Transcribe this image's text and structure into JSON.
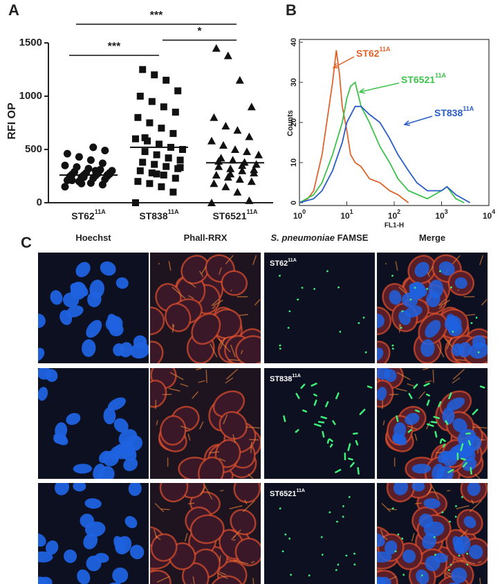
{
  "figure": {
    "panel_letters": [
      "A",
      "B",
      "C"
    ]
  },
  "chart_data": [
    {
      "type": "scatter",
      "y_label": "RFI OP",
      "categories": [
        "ST62",
        "ST838",
        "ST6521"
      ],
      "category_superscripts": [
        "11A",
        "11A",
        "11A"
      ],
      "ylim": [
        0,
        1500
      ],
      "yticks": [
        0,
        500,
        1000,
        1500
      ],
      "color": "#111111",
      "groups": [
        {
          "marker": "circle",
          "mean": 260,
          "values": [
            150,
            170,
            185,
            200,
            210,
            220,
            230,
            240,
            245,
            250,
            255,
            260,
            265,
            270,
            275,
            280,
            290,
            300,
            310,
            320,
            335,
            350,
            370,
            400,
            430,
            460,
            490,
            520,
            180,
            230,
            260,
            300,
            240,
            210,
            280
          ]
        },
        {
          "marker": "square",
          "mean": 520,
          "values": [
            0,
            100,
            150,
            180,
            200,
            230,
            260,
            280,
            300,
            320,
            340,
            360,
            380,
            400,
            420,
            450,
            480,
            500,
            520,
            550,
            580,
            600,
            650,
            700,
            750,
            800,
            850,
            900,
            950,
            1000,
            1050,
            1150,
            1200,
            1250,
            330,
            420,
            270,
            610
          ]
        },
        {
          "marker": "triangle",
          "mean": 375,
          "values": [
            0,
            20,
            100,
            150,
            180,
            200,
            220,
            240,
            260,
            280,
            300,
            320,
            340,
            360,
            380,
            400,
            420,
            450,
            480,
            500,
            540,
            580,
            620,
            680,
            720,
            800,
            900,
            1150,
            1380,
            1450,
            310,
            350,
            270,
            390
          ]
        }
      ],
      "significance": [
        "***",
        "***",
        "*"
      ]
    },
    {
      "type": "line",
      "x_label": "FL1-H",
      "y_label": "Counts",
      "log_x": true,
      "xlim": [
        1,
        10000
      ],
      "xticks": [
        {
          "value": 1,
          "label": "10",
          "exponent": "0"
        },
        {
          "value": 10,
          "label": "10",
          "exponent": "1"
        },
        {
          "value": 100,
          "label": "10",
          "exponent": "2"
        },
        {
          "value": 1000,
          "label": "10",
          "exponent": "3"
        },
        {
          "value": 10000,
          "label": "10",
          "exponent": "4"
        }
      ],
      "ylim": [
        0,
        40
      ],
      "yticks": [
        0,
        10,
        20,
        30,
        40
      ],
      "series": [
        {
          "name": "ST62",
          "superscript": "11A",
          "color": "#e0642a",
          "x": [
            1,
            1.5,
            2,
            3,
            4,
            5,
            6,
            7,
            8,
            10,
            12,
            15,
            20,
            30,
            50,
            80,
            120,
            200
          ],
          "values": [
            0,
            1,
            3,
            12,
            22,
            30,
            38,
            32,
            24,
            18,
            12,
            10,
            9,
            6,
            5,
            3,
            2,
            0
          ]
        },
        {
          "name": "ST6521",
          "superscript": "11A",
          "color": "#3cc24a",
          "x": [
            1,
            2,
            3,
            5,
            8,
            10,
            12,
            15,
            20,
            30,
            50,
            80,
            120,
            200,
            500,
            1000,
            1300,
            2000,
            3000
          ],
          "values": [
            0,
            2,
            5,
            12,
            20,
            26,
            29,
            30,
            24,
            20,
            14,
            10,
            6,
            3,
            1,
            3,
            4,
            1,
            0
          ]
        },
        {
          "name": "ST838",
          "superscript": "11A",
          "color": "#2a5cc8",
          "x": [
            1,
            2,
            3,
            5,
            8,
            10,
            15,
            20,
            30,
            50,
            80,
            120,
            200,
            300,
            500,
            1000,
            1300,
            2000,
            4000
          ],
          "values": [
            0,
            1,
            3,
            8,
            15,
            20,
            24,
            24,
            22,
            20,
            16,
            12,
            8,
            5,
            3,
            3,
            4,
            2,
            0
          ]
        }
      ]
    }
  ],
  "panel_c": {
    "columns": [
      {
        "label": "Hoechst"
      },
      {
        "label": "Phall-RRX"
      },
      {
        "italic": "S. pneumoniae",
        "label": "FAMSE"
      },
      {
        "label": "Merge"
      }
    ],
    "rows": [
      {
        "label": "ST62",
        "superscript": "11A"
      },
      {
        "label": "ST838",
        "superscript": "11A"
      },
      {
        "label": "ST6521",
        "superscript": "11A"
      }
    ]
  }
}
